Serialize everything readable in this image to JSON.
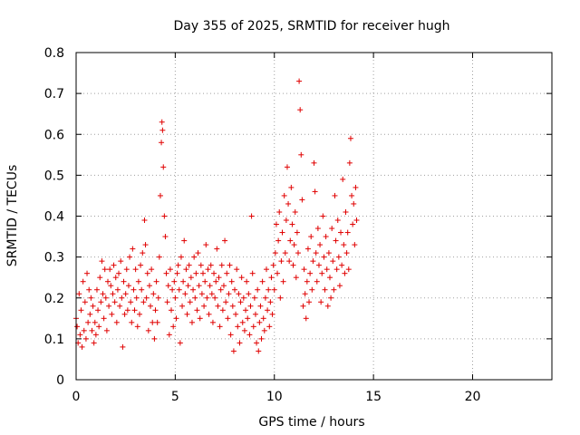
{
  "chart_data": {
    "type": "scatter",
    "title": "Day 355 of 2025, SRMTID for receiver hugh",
    "xlabel": "GPS time / hours",
    "ylabel": "SRMTID / TECUs",
    "xlim": [
      0,
      24
    ],
    "ylim": [
      0,
      0.8
    ],
    "xticks": [
      0,
      5,
      10,
      15,
      20
    ],
    "xtick_labels": [
      "0",
      "5",
      "10",
      "15",
      "20"
    ],
    "yticks": [
      0,
      0.1,
      0.2,
      0.3,
      0.4,
      0.5,
      0.6,
      0.7,
      0.8
    ],
    "ytick_labels": [
      "0",
      "0.1",
      "0.2",
      "0.3",
      "0.4",
      "0.5",
      "0.6",
      "0.7",
      "0.8"
    ],
    "grid": true,
    "marker": "+",
    "color": "#e00000",
    "series": [
      {
        "name": "SRMTID",
        "points": [
          [
            0.0,
            0.15
          ],
          [
            0.05,
            0.13
          ],
          [
            0.1,
            0.09
          ],
          [
            0.15,
            0.21
          ],
          [
            0.2,
            0.11
          ],
          [
            0.25,
            0.17
          ],
          [
            0.3,
            0.08
          ],
          [
            0.35,
            0.24
          ],
          [
            0.4,
            0.12
          ],
          [
            0.45,
            0.19
          ],
          [
            0.5,
            0.1
          ],
          [
            0.55,
            0.26
          ],
          [
            0.6,
            0.14
          ],
          [
            0.65,
            0.22
          ],
          [
            0.7,
            0.16
          ],
          [
            0.75,
            0.2
          ],
          [
            0.8,
            0.12
          ],
          [
            0.85,
            0.18
          ],
          [
            0.9,
            0.09
          ],
          [
            0.95,
            0.14
          ],
          [
            1.0,
            0.11
          ],
          [
            1.05,
            0.22
          ],
          [
            1.1,
            0.17
          ],
          [
            1.15,
            0.13
          ],
          [
            1.2,
            0.25
          ],
          [
            1.25,
            0.19
          ],
          [
            1.3,
            0.29
          ],
          [
            1.35,
            0.21
          ],
          [
            1.4,
            0.15
          ],
          [
            1.45,
            0.27
          ],
          [
            1.5,
            0.2
          ],
          [
            1.55,
            0.12
          ],
          [
            1.6,
            0.24
          ],
          [
            1.65,
            0.18
          ],
          [
            1.7,
            0.27
          ],
          [
            1.75,
            0.23
          ],
          [
            1.8,
            0.16
          ],
          [
            1.85,
            0.21
          ],
          [
            1.9,
            0.28
          ],
          [
            1.95,
            0.19
          ],
          [
            2.0,
            0.25
          ],
          [
            2.05,
            0.14
          ],
          [
            2.1,
            0.22
          ],
          [
            2.15,
            0.26
          ],
          [
            2.2,
            0.18
          ],
          [
            2.25,
            0.29
          ],
          [
            2.3,
            0.2
          ],
          [
            2.35,
            0.08
          ],
          [
            2.4,
            0.24
          ],
          [
            2.45,
            0.16
          ],
          [
            2.5,
            0.21
          ],
          [
            2.55,
            0.27
          ],
          [
            2.6,
            0.17
          ],
          [
            2.65,
            0.23
          ],
          [
            2.7,
            0.3
          ],
          [
            2.75,
            0.19
          ],
          [
            2.8,
            0.14
          ],
          [
            2.85,
            0.32
          ],
          [
            2.9,
            0.22
          ],
          [
            2.95,
            0.17
          ],
          [
            3.0,
            0.27
          ],
          [
            3.05,
            0.2
          ],
          [
            3.1,
            0.13
          ],
          [
            3.15,
            0.24
          ],
          [
            3.2,
            0.16
          ],
          [
            3.25,
            0.28
          ],
          [
            3.3,
            0.22
          ],
          [
            3.35,
            0.31
          ],
          [
            3.4,
            0.19
          ],
          [
            3.45,
            0.39
          ],
          [
            3.5,
            0.33
          ],
          [
            3.55,
            0.2
          ],
          [
            3.6,
            0.26
          ],
          [
            3.65,
            0.12
          ],
          [
            3.7,
            0.23
          ],
          [
            3.75,
            0.18
          ],
          [
            3.8,
            0.27
          ],
          [
            3.85,
            0.14
          ],
          [
            3.9,
            0.21
          ],
          [
            3.95,
            0.1
          ],
          [
            4.0,
            0.17
          ],
          [
            4.05,
            0.24
          ],
          [
            4.1,
            0.14
          ],
          [
            4.15,
            0.2
          ],
          [
            4.2,
            0.3
          ],
          [
            4.25,
            0.45
          ],
          [
            4.3,
            0.58
          ],
          [
            4.33,
            0.63
          ],
          [
            4.36,
            0.61
          ],
          [
            4.4,
            0.52
          ],
          [
            4.45,
            0.4
          ],
          [
            4.5,
            0.35
          ],
          [
            4.55,
            0.26
          ],
          [
            4.6,
            0.19
          ],
          [
            4.65,
            0.23
          ],
          [
            4.7,
            0.11
          ],
          [
            4.75,
            0.27
          ],
          [
            4.8,
            0.17
          ],
          [
            4.85,
            0.22
          ],
          [
            4.9,
            0.13
          ],
          [
            4.95,
            0.24
          ],
          [
            5.0,
            0.2
          ],
          [
            5.05,
            0.15
          ],
          [
            5.1,
            0.26
          ],
          [
            5.15,
            0.28
          ],
          [
            5.2,
            0.22
          ],
          [
            5.25,
            0.09
          ],
          [
            5.3,
            0.3
          ],
          [
            5.35,
            0.18
          ],
          [
            5.4,
            0.24
          ],
          [
            5.45,
            0.34
          ],
          [
            5.5,
            0.21
          ],
          [
            5.55,
            0.27
          ],
          [
            5.6,
            0.16
          ],
          [
            5.65,
            0.23
          ],
          [
            5.7,
            0.28
          ],
          [
            5.75,
            0.19
          ],
          [
            5.8,
            0.25
          ],
          [
            5.85,
            0.14
          ],
          [
            5.9,
            0.22
          ],
          [
            5.95,
            0.3
          ],
          [
            6.0,
            0.2
          ],
          [
            6.05,
            0.26
          ],
          [
            6.1,
            0.17
          ],
          [
            6.15,
            0.31
          ],
          [
            6.2,
            0.23
          ],
          [
            6.25,
            0.15
          ],
          [
            6.3,
            0.28
          ],
          [
            6.35,
            0.21
          ],
          [
            6.4,
            0.26
          ],
          [
            6.45,
            0.18
          ],
          [
            6.5,
            0.24
          ],
          [
            6.55,
            0.33
          ],
          [
            6.6,
            0.2
          ],
          [
            6.65,
            0.27
          ],
          [
            6.7,
            0.16
          ],
          [
            6.75,
            0.23
          ],
          [
            6.8,
            0.28
          ],
          [
            6.85,
            0.21
          ],
          [
            6.9,
            0.14
          ],
          [
            6.95,
            0.26
          ],
          [
            7.0,
            0.2
          ],
          [
            7.05,
            0.24
          ],
          [
            7.1,
            0.32
          ],
          [
            7.15,
            0.18
          ],
          [
            7.2,
            0.25
          ],
          [
            7.25,
            0.13
          ],
          [
            7.3,
            0.22
          ],
          [
            7.35,
            0.28
          ],
          [
            7.4,
            0.17
          ],
          [
            7.45,
            0.23
          ],
          [
            7.5,
            0.34
          ],
          [
            7.55,
            0.19
          ],
          [
            7.6,
            0.26
          ],
          [
            7.65,
            0.15
          ],
          [
            7.7,
            0.21
          ],
          [
            7.75,
            0.28
          ],
          [
            7.8,
            0.11
          ],
          [
            7.85,
            0.24
          ],
          [
            7.9,
            0.18
          ],
          [
            7.95,
            0.07
          ],
          [
            8.0,
            0.22
          ],
          [
            8.05,
            0.16
          ],
          [
            8.1,
            0.27
          ],
          [
            8.15,
            0.13
          ],
          [
            8.2,
            0.21
          ],
          [
            8.25,
            0.09
          ],
          [
            8.3,
            0.19
          ],
          [
            8.35,
            0.25
          ],
          [
            8.4,
            0.14
          ],
          [
            8.45,
            0.2
          ],
          [
            8.5,
            0.12
          ],
          [
            8.55,
            0.17
          ],
          [
            8.6,
            0.24
          ],
          [
            8.65,
            0.15
          ],
          [
            8.7,
            0.21
          ],
          [
            8.75,
            0.11
          ],
          [
            8.8,
            0.18
          ],
          [
            8.85,
            0.4
          ],
          [
            8.9,
            0.26
          ],
          [
            8.95,
            0.13
          ],
          [
            9.0,
            0.2
          ],
          [
            9.05,
            0.16
          ],
          [
            9.1,
            0.09
          ],
          [
            9.15,
            0.22
          ],
          [
            9.2,
            0.07
          ],
          [
            9.25,
            0.14
          ],
          [
            9.3,
            0.18
          ],
          [
            9.35,
            0.1
          ],
          [
            9.4,
            0.24
          ],
          [
            9.45,
            0.15
          ],
          [
            9.5,
            0.12
          ],
          [
            9.55,
            0.2
          ],
          [
            9.6,
            0.27
          ],
          [
            9.65,
            0.17
          ],
          [
            9.7,
            0.22
          ],
          [
            9.75,
            0.13
          ],
          [
            9.8,
            0.19
          ],
          [
            9.85,
            0.25
          ],
          [
            9.9,
            0.16
          ],
          [
            9.95,
            0.28
          ],
          [
            10.0,
            0.22
          ],
          [
            10.05,
            0.31
          ],
          [
            10.1,
            0.38
          ],
          [
            10.15,
            0.26
          ],
          [
            10.2,
            0.34
          ],
          [
            10.25,
            0.41
          ],
          [
            10.3,
            0.2
          ],
          [
            10.35,
            0.29
          ],
          [
            10.4,
            0.36
          ],
          [
            10.45,
            0.24
          ],
          [
            10.5,
            0.45
          ],
          [
            10.55,
            0.31
          ],
          [
            10.6,
            0.39
          ],
          [
            10.65,
            0.52
          ],
          [
            10.7,
            0.43
          ],
          [
            10.75,
            0.29
          ],
          [
            10.8,
            0.34
          ],
          [
            10.85,
            0.47
          ],
          [
            10.9,
            0.38
          ],
          [
            10.95,
            0.28
          ],
          [
            11.0,
            0.33
          ],
          [
            11.05,
            0.41
          ],
          [
            11.1,
            0.25
          ],
          [
            11.15,
            0.36
          ],
          [
            11.2,
            0.31
          ],
          [
            11.25,
            0.73
          ],
          [
            11.3,
            0.66
          ],
          [
            11.35,
            0.55
          ],
          [
            11.4,
            0.44
          ],
          [
            11.45,
            0.18
          ],
          [
            11.5,
            0.27
          ],
          [
            11.55,
            0.21
          ],
          [
            11.6,
            0.15
          ],
          [
            11.65,
            0.24
          ],
          [
            11.7,
            0.32
          ],
          [
            11.75,
            0.19
          ],
          [
            11.8,
            0.26
          ],
          [
            11.85,
            0.35
          ],
          [
            11.9,
            0.22
          ],
          [
            11.95,
            0.29
          ],
          [
            12.0,
            0.53
          ],
          [
            12.05,
            0.46
          ],
          [
            12.1,
            0.31
          ],
          [
            12.15,
            0.24
          ],
          [
            12.2,
            0.37
          ],
          [
            12.25,
            0.28
          ],
          [
            12.3,
            0.33
          ],
          [
            12.35,
            0.19
          ],
          [
            12.4,
            0.26
          ],
          [
            12.45,
            0.4
          ],
          [
            12.5,
            0.3
          ],
          [
            12.55,
            0.22
          ],
          [
            12.6,
            0.35
          ],
          [
            12.65,
            0.27
          ],
          [
            12.7,
            0.18
          ],
          [
            12.75,
            0.31
          ],
          [
            12.8,
            0.25
          ],
          [
            12.85,
            0.2
          ],
          [
            12.9,
            0.37
          ],
          [
            12.95,
            0.29
          ],
          [
            13.0,
            0.22
          ],
          [
            13.05,
            0.45
          ],
          [
            13.1,
            0.34
          ],
          [
            13.15,
            0.27
          ],
          [
            13.2,
            0.39
          ],
          [
            13.25,
            0.3
          ],
          [
            13.3,
            0.23
          ],
          [
            13.35,
            0.36
          ],
          [
            13.4,
            0.28
          ],
          [
            13.45,
            0.49
          ],
          [
            13.5,
            0.33
          ],
          [
            13.55,
            0.26
          ],
          [
            13.6,
            0.41
          ],
          [
            13.65,
            0.31
          ],
          [
            13.7,
            0.36
          ],
          [
            13.75,
            0.27
          ],
          [
            13.8,
            0.53
          ],
          [
            13.85,
            0.59
          ],
          [
            13.9,
            0.45
          ],
          [
            13.95,
            0.38
          ],
          [
            14.0,
            0.43
          ],
          [
            14.05,
            0.33
          ],
          [
            14.1,
            0.47
          ],
          [
            14.15,
            0.39
          ]
        ]
      }
    ]
  }
}
